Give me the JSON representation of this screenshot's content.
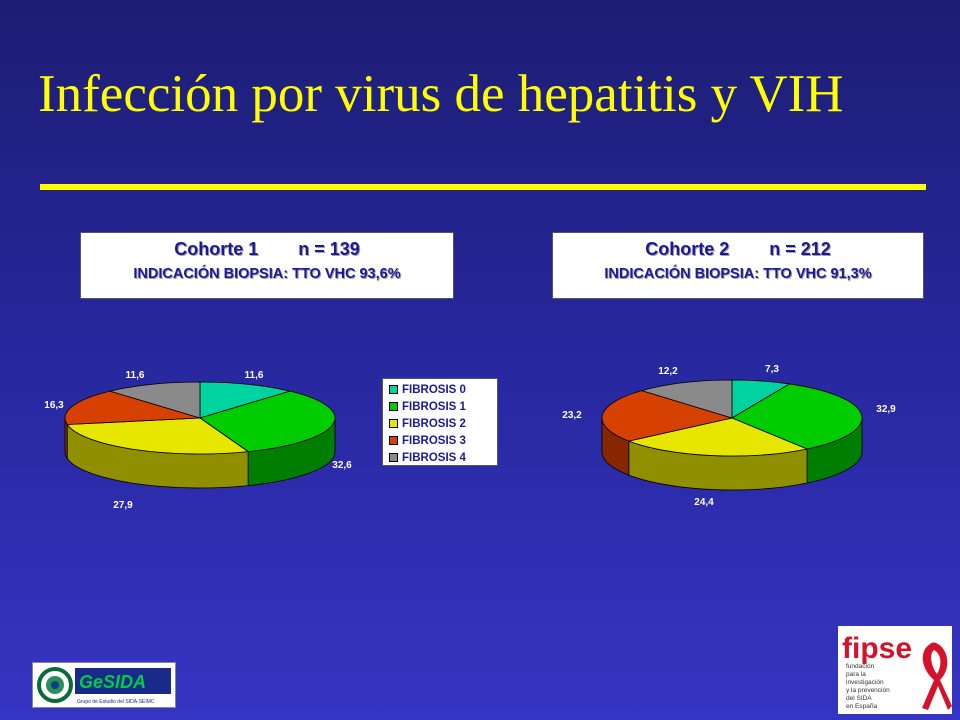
{
  "slide": {
    "title": "Infección por virus de hepatitis y VIH"
  },
  "cohort1": {
    "heading": "Cohorte 1        n = 139",
    "subheading": "INDICACIÓN BIOPSIA: TTO VHC 93,6%"
  },
  "cohort2": {
    "heading": "Cohorte 2        n = 212",
    "subheading": "INDICACIÓN BIOPSIA: TTO VHC 91,3%"
  },
  "legend": {
    "items": [
      "FIBROSIS 0",
      "FIBROSIS 1",
      "FIBROSIS 2",
      "FIBROSIS 3",
      "FIBROSIS 4"
    ],
    "colors": [
      "#00d2a0",
      "#00cc00",
      "#e6e600",
      "#d64000",
      "#8a8a8a"
    ]
  },
  "chart_data": [
    {
      "type": "pie",
      "categories": [
        "FIBROSIS 0",
        "FIBROSIS 1",
        "FIBROSIS 2",
        "FIBROSIS 3",
        "FIBROSIS 4"
      ],
      "values": [
        11.6,
        32.6,
        27.9,
        16.3,
        11.6
      ],
      "value_labels": [
        "11,6",
        "32,6",
        "27,9",
        "16,3",
        "11,6"
      ],
      "legend": "right"
    },
    {
      "type": "pie",
      "categories": [
        "FIBROSIS 0",
        "FIBROSIS 1",
        "FIBROSIS 2",
        "FIBROSIS 3",
        "FIBROSIS 4"
      ],
      "values": [
        7.3,
        32.9,
        24.4,
        23.2,
        12.2
      ],
      "value_labels": [
        "7,3",
        "32,9",
        "24,4",
        "23,2",
        "12,2"
      ]
    }
  ],
  "logos": {
    "left": {
      "name": "gesida-logo",
      "text": "GeSIDA",
      "caption": "Grupo de Estudio del SIDA-SEIMC"
    },
    "right": {
      "name": "fipse-logo",
      "text": "fipse",
      "caption_lines": [
        "fundación",
        "para la",
        "investigación",
        "y la prevención",
        "del SIDA",
        "en España"
      ]
    }
  }
}
